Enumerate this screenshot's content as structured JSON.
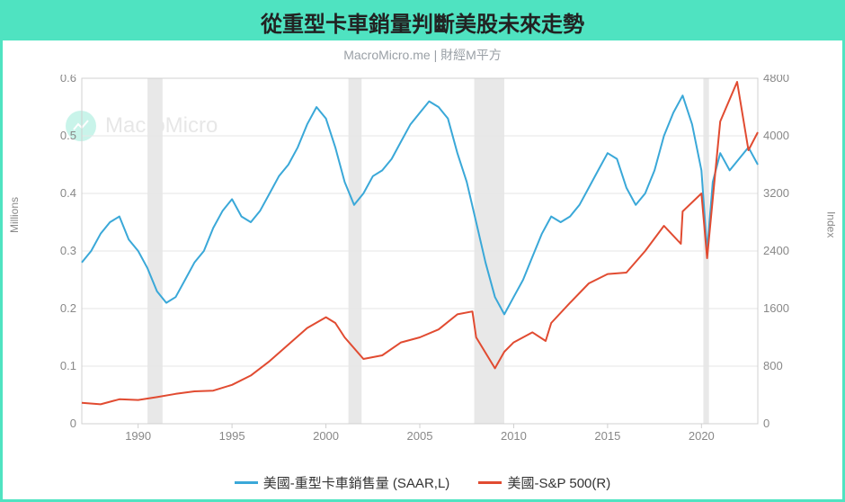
{
  "header": {
    "title": "從重型卡車銷量判斷美股未來走勢",
    "title_fontsize": 24,
    "title_color": "#222222",
    "bar_color": "#4fe3c1"
  },
  "subtitle": {
    "text": "MacroMicro.me | 財經M平方",
    "color": "#9aa0a6",
    "fontsize": 14
  },
  "watermark": {
    "text": "MacroMicro",
    "logo_color": "#67e2c6"
  },
  "chart": {
    "type": "line-dual-axis",
    "background_color": "#ffffff",
    "grid_color": "#e6e6e6",
    "border_color": "#d0d0d0",
    "x": {
      "min": 1987,
      "max": 2023,
      "ticks": [
        1990,
        1995,
        2000,
        2005,
        2010,
        2015,
        2020
      ],
      "tick_fontsize": 13
    },
    "y_left": {
      "label": "Millions",
      "min": 0,
      "max": 0.6,
      "ticks": [
        0,
        0.1,
        0.2,
        0.3,
        0.4,
        0.5,
        0.6
      ],
      "label_fontsize": 12
    },
    "y_right": {
      "label": "Index",
      "min": 0,
      "max": 4800,
      "ticks": [
        0,
        800,
        1600,
        2400,
        3200,
        4000,
        4800
      ],
      "label_fontsize": 12
    },
    "recession_bands": {
      "color": "#e8e8e8",
      "ranges": [
        [
          1990.5,
          1991.3
        ],
        [
          2001.2,
          2001.9
        ],
        [
          2007.9,
          2009.5
        ],
        [
          2020.1,
          2020.4
        ]
      ]
    },
    "series": [
      {
        "name": "美國-重型卡車銷售量 (SAAR,L)",
        "axis": "left",
        "color": "#3aa8d8",
        "line_width": 2,
        "data": [
          [
            1987,
            0.28
          ],
          [
            1987.5,
            0.3
          ],
          [
            1988,
            0.33
          ],
          [
            1988.5,
            0.35
          ],
          [
            1989,
            0.36
          ],
          [
            1989.5,
            0.32
          ],
          [
            1990,
            0.3
          ],
          [
            1990.5,
            0.27
          ],
          [
            1991,
            0.23
          ],
          [
            1991.5,
            0.21
          ],
          [
            1992,
            0.22
          ],
          [
            1992.5,
            0.25
          ],
          [
            1993,
            0.28
          ],
          [
            1993.5,
            0.3
          ],
          [
            1994,
            0.34
          ],
          [
            1994.5,
            0.37
          ],
          [
            1995,
            0.39
          ],
          [
            1995.5,
            0.36
          ],
          [
            1996,
            0.35
          ],
          [
            1996.5,
            0.37
          ],
          [
            1997,
            0.4
          ],
          [
            1997.5,
            0.43
          ],
          [
            1998,
            0.45
          ],
          [
            1998.5,
            0.48
          ],
          [
            1999,
            0.52
          ],
          [
            1999.5,
            0.55
          ],
          [
            2000,
            0.53
          ],
          [
            2000.5,
            0.48
          ],
          [
            2001,
            0.42
          ],
          [
            2001.5,
            0.38
          ],
          [
            2002,
            0.4
          ],
          [
            2002.5,
            0.43
          ],
          [
            2003,
            0.44
          ],
          [
            2003.5,
            0.46
          ],
          [
            2004,
            0.49
          ],
          [
            2004.5,
            0.52
          ],
          [
            2005,
            0.54
          ],
          [
            2005.5,
            0.56
          ],
          [
            2006,
            0.55
          ],
          [
            2006.5,
            0.53
          ],
          [
            2007,
            0.47
          ],
          [
            2007.5,
            0.42
          ],
          [
            2008,
            0.35
          ],
          [
            2008.5,
            0.28
          ],
          [
            2009,
            0.22
          ],
          [
            2009.5,
            0.19
          ],
          [
            2010,
            0.22
          ],
          [
            2010.5,
            0.25
          ],
          [
            2011,
            0.29
          ],
          [
            2011.5,
            0.33
          ],
          [
            2012,
            0.36
          ],
          [
            2012.5,
            0.35
          ],
          [
            2013,
            0.36
          ],
          [
            2013.5,
            0.38
          ],
          [
            2014,
            0.41
          ],
          [
            2014.5,
            0.44
          ],
          [
            2015,
            0.47
          ],
          [
            2015.5,
            0.46
          ],
          [
            2016,
            0.41
          ],
          [
            2016.5,
            0.38
          ],
          [
            2017,
            0.4
          ],
          [
            2017.5,
            0.44
          ],
          [
            2018,
            0.5
          ],
          [
            2018.5,
            0.54
          ],
          [
            2019,
            0.57
          ],
          [
            2019.5,
            0.52
          ],
          [
            2020,
            0.44
          ],
          [
            2020.3,
            0.3
          ],
          [
            2020.6,
            0.42
          ],
          [
            2021,
            0.47
          ],
          [
            2021.5,
            0.44
          ],
          [
            2022,
            0.46
          ],
          [
            2022.5,
            0.48
          ],
          [
            2023,
            0.45
          ]
        ]
      },
      {
        "name": "美國-S&P 500(R)",
        "axis": "right",
        "color": "#e14b31",
        "line_width": 2,
        "data": [
          [
            1987,
            290
          ],
          [
            1988,
            270
          ],
          [
            1989,
            340
          ],
          [
            1990,
            330
          ],
          [
            1991,
            370
          ],
          [
            1992,
            415
          ],
          [
            1993,
            450
          ],
          [
            1994,
            460
          ],
          [
            1995,
            540
          ],
          [
            1996,
            670
          ],
          [
            1997,
            870
          ],
          [
            1998,
            1100
          ],
          [
            1999,
            1330
          ],
          [
            2000,
            1480
          ],
          [
            2000.5,
            1400
          ],
          [
            2001,
            1200
          ],
          [
            2002,
            900
          ],
          [
            2003,
            950
          ],
          [
            2004,
            1130
          ],
          [
            2005,
            1200
          ],
          [
            2006,
            1310
          ],
          [
            2007,
            1520
          ],
          [
            2007.8,
            1560
          ],
          [
            2008,
            1200
          ],
          [
            2009,
            770
          ],
          [
            2009.5,
            1000
          ],
          [
            2010,
            1130
          ],
          [
            2011,
            1270
          ],
          [
            2011.7,
            1150
          ],
          [
            2012,
            1400
          ],
          [
            2013,
            1680
          ],
          [
            2014,
            1950
          ],
          [
            2015,
            2080
          ],
          [
            2016,
            2100
          ],
          [
            2017,
            2400
          ],
          [
            2018,
            2750
          ],
          [
            2018.9,
            2500
          ],
          [
            2019,
            2950
          ],
          [
            2020,
            3200
          ],
          [
            2020.3,
            2300
          ],
          [
            2020.7,
            3400
          ],
          [
            2021,
            4200
          ],
          [
            2021.9,
            4750
          ],
          [
            2022.5,
            3800
          ],
          [
            2023,
            4050
          ]
        ]
      }
    ]
  },
  "legend": {
    "fontsize": 15,
    "items": [
      {
        "label": "美國-重型卡車銷售量 (SAAR,L)",
        "color": "#3aa8d8"
      },
      {
        "label": "美國-S&P 500(R)",
        "color": "#e14b31"
      }
    ]
  }
}
